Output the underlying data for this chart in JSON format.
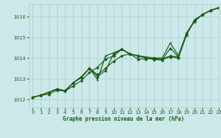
{
  "title": "Graphe pression niveau de la mer (hPa)",
  "bg_color": "#cce8e8",
  "grid_color": "#b0cccc",
  "line_color": "#1a5c1a",
  "marker_color": "#1a5c1a",
  "xlim": [
    -0.5,
    23
  ],
  "ylim": [
    1011.6,
    1016.6
  ],
  "xticks": [
    0,
    1,
    2,
    3,
    4,
    5,
    6,
    7,
    8,
    9,
    10,
    11,
    12,
    13,
    14,
    15,
    16,
    17,
    18,
    19,
    20,
    21,
    22,
    23
  ],
  "yticks": [
    1012,
    1013,
    1014,
    1015,
    1016
  ],
  "series": [
    {
      "x": [
        0,
        1,
        2,
        3,
        4,
        5,
        6,
        7,
        8,
        9,
        10,
        11,
        12,
        13,
        14,
        15,
        16,
        17,
        18,
        19,
        20,
        21,
        22,
        23
      ],
      "y": [
        1012.1,
        1012.2,
        1012.25,
        1012.45,
        1012.4,
        1012.65,
        1012.9,
        1013.3,
        1013.55,
        1013.95,
        1014.1,
        1014.42,
        1014.2,
        1014.1,
        1014.0,
        1013.95,
        1013.95,
        1014.1,
        1014.05,
        1015.2,
        1015.8,
        1016.1,
        1016.3,
        1016.42
      ],
      "marker": "D",
      "ms": 2.0,
      "lw": 0.9
    },
    {
      "x": [
        0,
        1,
        2,
        3,
        4,
        5,
        6,
        7,
        8,
        9,
        10,
        11,
        12,
        13,
        14,
        15,
        16,
        17,
        18,
        19,
        20,
        21,
        22,
        23
      ],
      "y": [
        1012.1,
        1012.2,
        1012.35,
        1012.5,
        1012.4,
        1012.8,
        1013.05,
        1013.5,
        1013.2,
        1013.5,
        1013.85,
        1014.1,
        1014.2,
        1013.95,
        1013.95,
        1014.0,
        1013.92,
        1014.05,
        1014.0,
        1015.1,
        1015.85,
        1016.1,
        1016.3,
        1016.42
      ],
      "marker": "D",
      "ms": 2.0,
      "lw": 0.9
    },
    {
      "x": [
        0,
        1,
        2,
        3,
        4,
        5,
        6,
        7,
        8,
        9,
        10,
        11,
        12,
        13,
        14,
        15,
        16,
        17,
        18,
        19,
        20,
        21,
        22,
        23
      ],
      "y": [
        1012.1,
        1012.2,
        1012.35,
        1012.5,
        1012.42,
        1012.8,
        1013.1,
        1013.5,
        1013.1,
        1013.4,
        1014.2,
        1014.42,
        1014.2,
        1014.1,
        1014.02,
        1013.92,
        1013.9,
        1014.48,
        1014.05,
        1015.15,
        1015.78,
        1016.1,
        1016.3,
        1016.42
      ],
      "marker": "^",
      "ms": 2.5,
      "lw": 0.9
    },
    {
      "x": [
        0,
        1,
        2,
        3,
        4,
        5,
        6,
        7,
        8,
        9,
        10,
        11,
        12,
        13,
        14,
        15,
        16,
        17,
        18,
        19,
        20,
        21,
        22,
        23
      ],
      "y": [
        1012.1,
        1012.2,
        1012.35,
        1012.5,
        1012.42,
        1012.8,
        1013.05,
        1013.5,
        1012.95,
        1014.1,
        1014.25,
        1014.42,
        1014.18,
        1014.12,
        1014.05,
        1014.0,
        1014.0,
        1014.72,
        1014.12,
        1015.15,
        1015.78,
        1016.1,
        1016.3,
        1016.44
      ],
      "marker": "+",
      "ms": 3.0,
      "lw": 0.9
    }
  ]
}
